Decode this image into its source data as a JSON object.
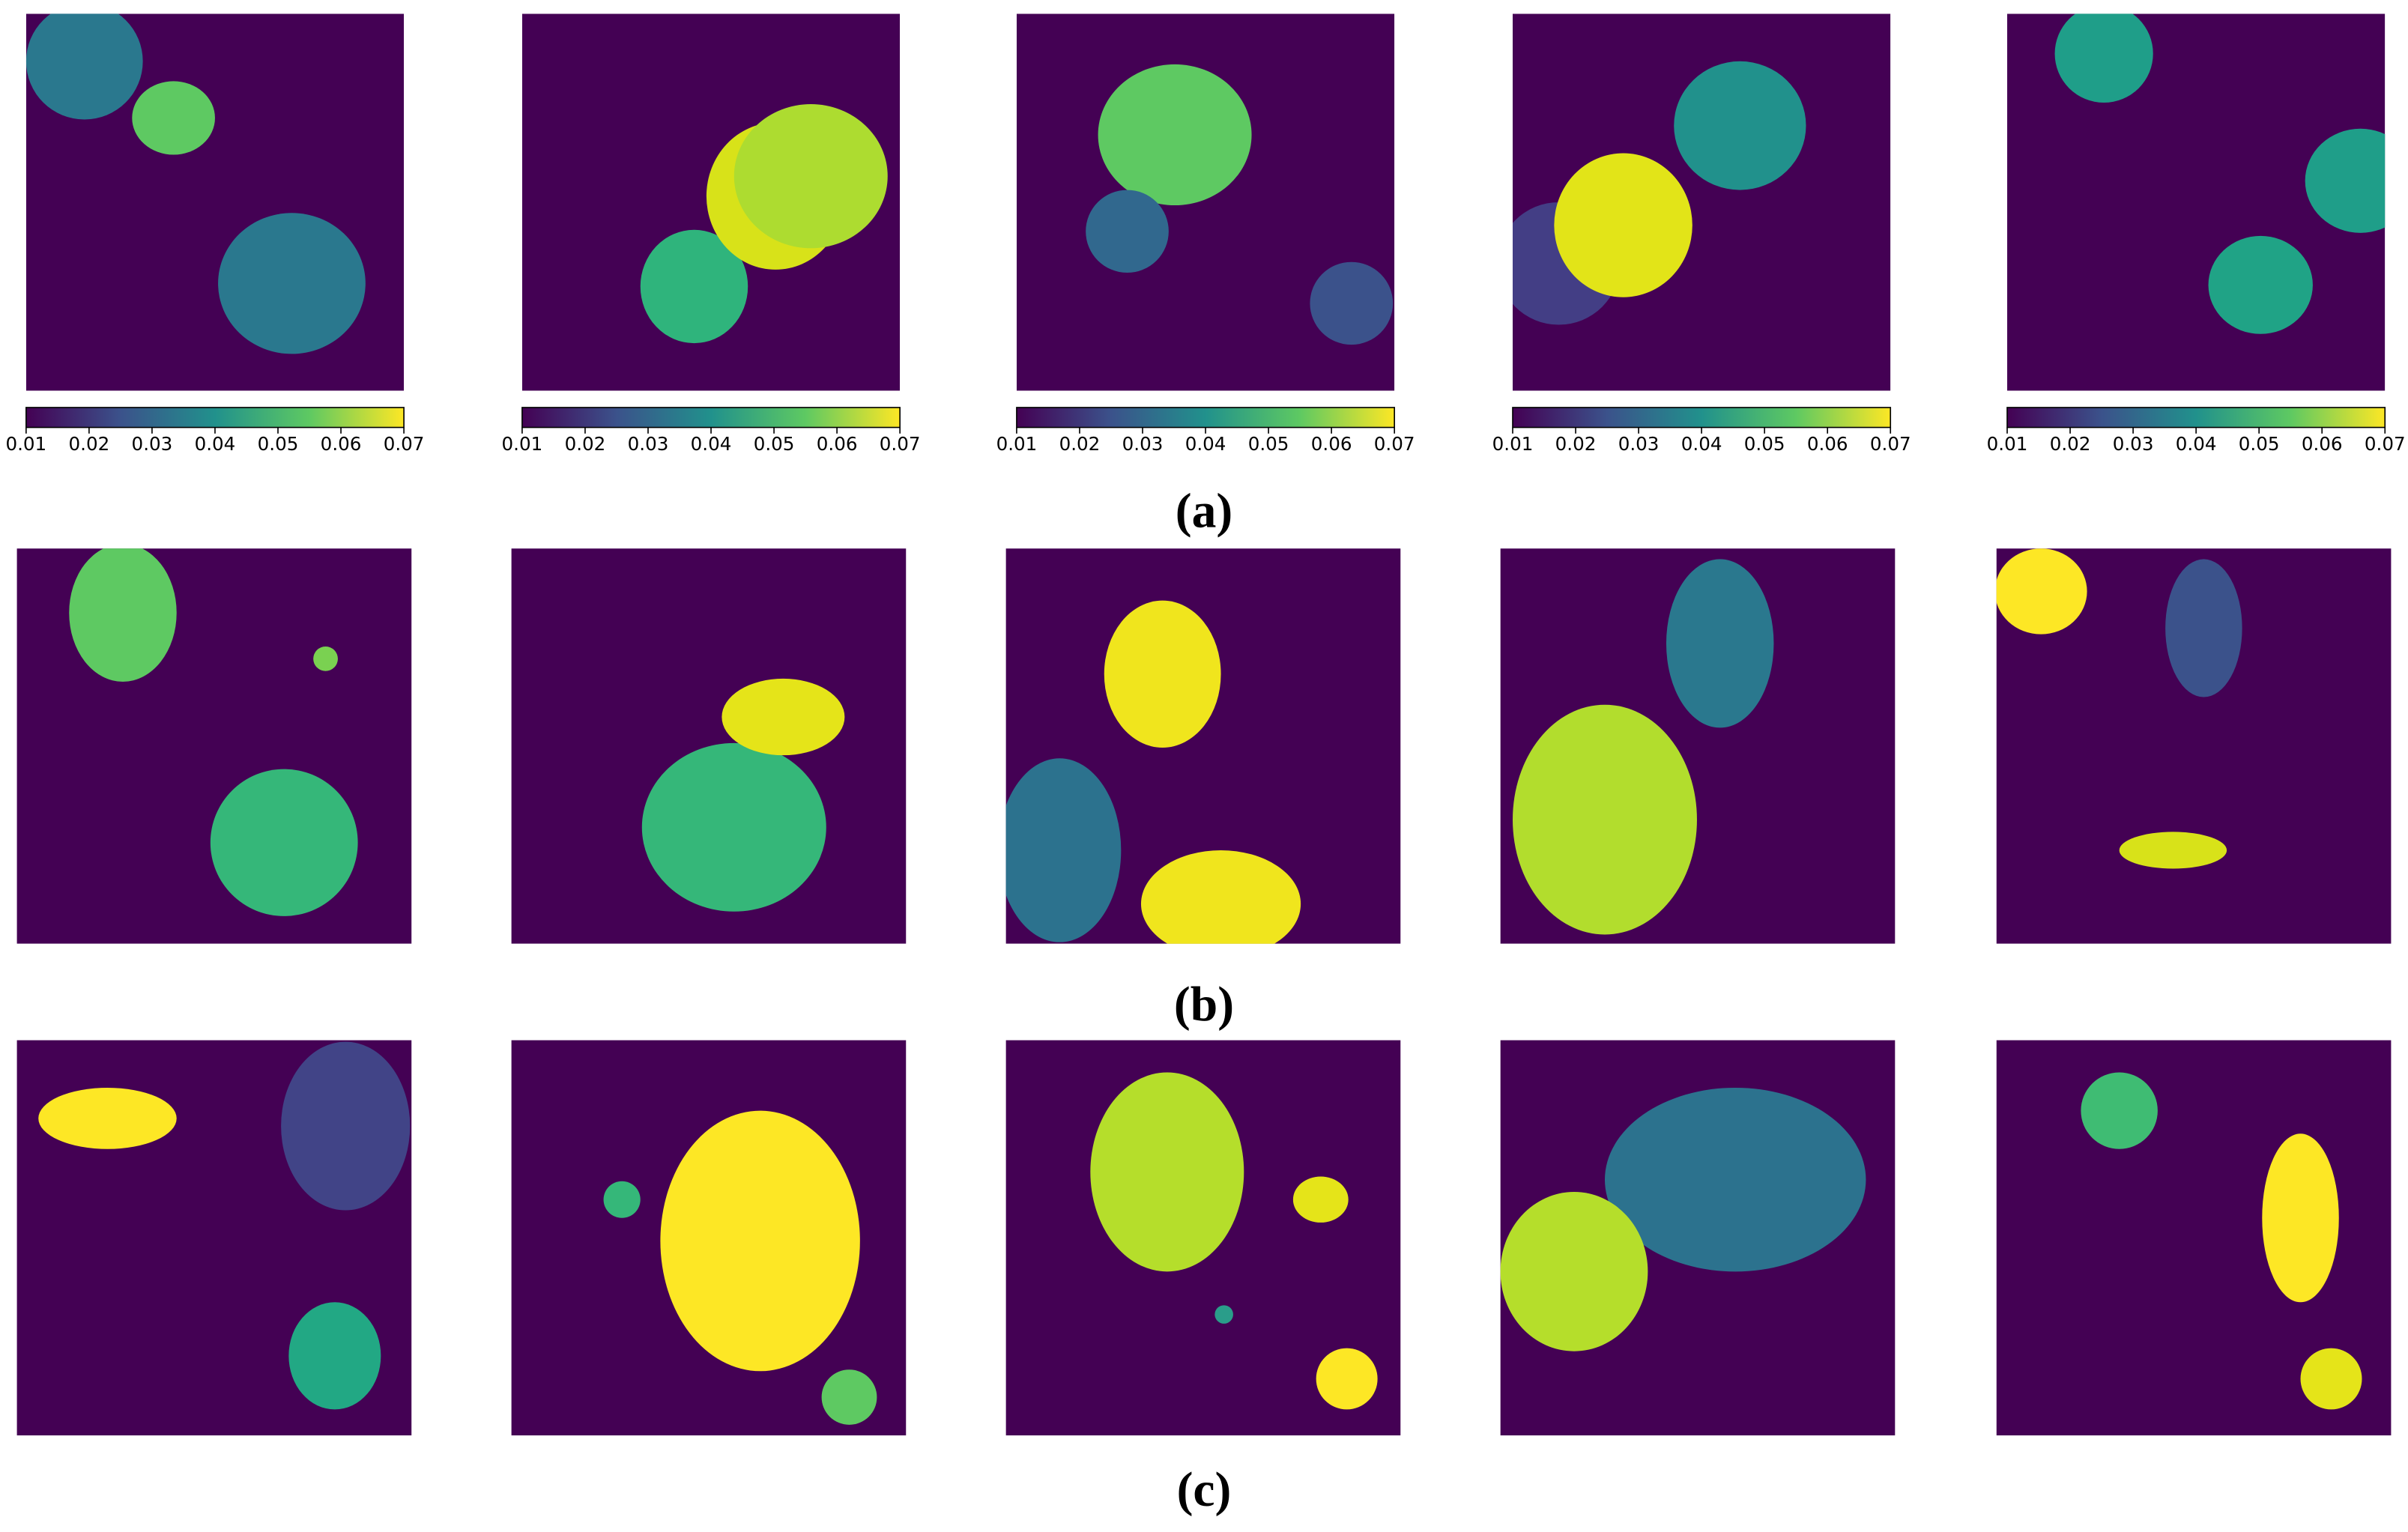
{
  "colorbar": {
    "range": [
      0.01,
      0.07
    ],
    "ticks": [
      0.01,
      0.02,
      0.03,
      0.04,
      0.05,
      0.06,
      0.07
    ]
  },
  "captions": [
    "(a)",
    "(b)",
    "(c)"
  ]
}
